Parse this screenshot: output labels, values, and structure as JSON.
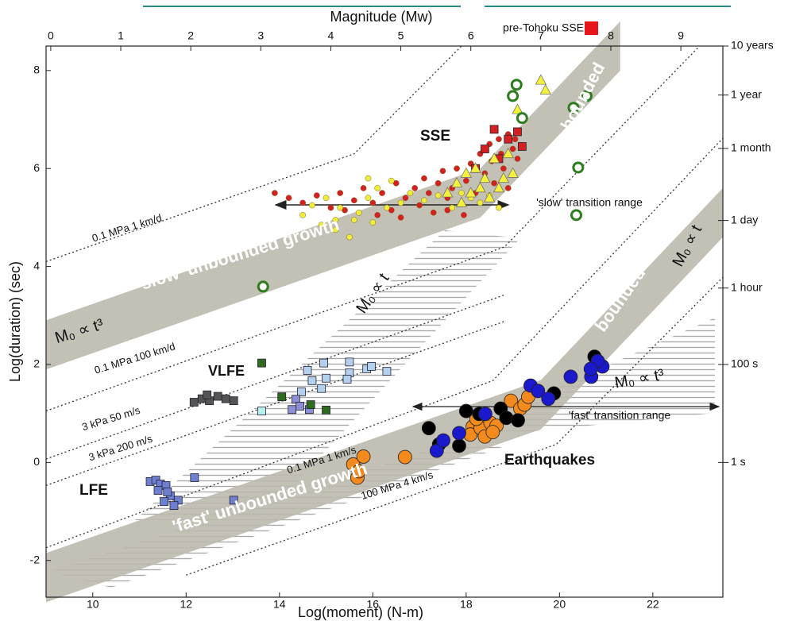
{
  "chart_data": {
    "type": "scatter",
    "xlabel": "Log(moment) (N-m)",
    "ylabel": "Log(duration) (sec)",
    "x2label": "Magnitude (Mw)",
    "xlim": [
      9,
      23.5
    ],
    "ylim": [
      -2.75,
      8.5
    ],
    "x2lim": [
      -0.067,
      9.6
    ],
    "y2lim": [
      -2.75,
      8.5
    ],
    "xticks": [
      10,
      12,
      14,
      16,
      18,
      20,
      22
    ],
    "yticks": [
      -2,
      0,
      2,
      4,
      6,
      8
    ],
    "x2ticks": [
      0,
      1,
      2,
      3,
      4,
      5,
      6,
      7,
      8,
      9
    ],
    "y2ticks": [
      {
        "value": 8.5,
        "label": "10 years"
      },
      {
        "value": 7.5,
        "label": "1 year"
      },
      {
        "value": 6.41,
        "label": "1 month"
      },
      {
        "value": 4.94,
        "label": "1 day"
      },
      {
        "value": 3.56,
        "label": "1 hour"
      },
      {
        "value": 2,
        "label": "100 s"
      },
      {
        "value": 0,
        "label": "1 s"
      }
    ],
    "bands": [
      {
        "color": "#bdb9ae",
        "x": [
          9,
          18.3,
          21.3
        ],
        "values": [
          2.4,
          5.5,
          8.5
        ]
      },
      {
        "color": "#bdb9ae",
        "x": [
          9,
          19.6,
          23.5
        ],
        "values": [
          -2.35,
          1.18,
          5.1
        ]
      }
    ],
    "reference_lines": [
      {
        "label": "0.1 MPa  1 km/d",
        "x": [
          9,
          15.6,
          17.9
        ],
        "values": [
          4.1,
          6.3,
          8.5
        ]
      },
      {
        "label": "0.1 MPa  100 km/d",
        "x": [
          9,
          18.82,
          23
        ],
        "values": [
          1.05,
          4.4,
          8.5
        ]
      },
      {
        "label": "3 kPa  50 m/s",
        "x": [
          9,
          18.82
        ],
        "values": [
          0.07,
          3.42
        ]
      },
      {
        "label": "3 kPa  200 m/s",
        "x": [
          9,
          18.82
        ],
        "values": [
          -0.47,
          2.88
        ]
      },
      {
        "label": "0.1 MPa  1 km/s",
        "x": [
          9,
          18.57,
          23.5
        ],
        "values": [
          -1.74,
          1.67,
          6.62
        ]
      },
      {
        "label": "100 MPa  4 km/s",
        "x": [
          12,
          19.93,
          23.5
        ],
        "values": [
          -2.3,
          0.37,
          3.78
        ]
      }
    ],
    "annotations": [
      "SSE",
      "VLFE",
      "LFE",
      "Earthquakes",
      "'slow' transition range",
      "'fast' transition range",
      "bounded",
      "bounded",
      "'slow' unbounded growth",
      "'fast' unbounded growth",
      "M₀ ∝ t³",
      "M₀ ∝ t",
      "M₀ ∝ t",
      "M₀ ∝ t³"
    ],
    "series": [
      {
        "color": "#d42020",
        "marker": "circle",
        "x": [
          13.9,
          14.2,
          14.5,
          14.8,
          15.1,
          15.3,
          15.6,
          15.8,
          16.0,
          16.2,
          16.4,
          16.5,
          16.7,
          16.9,
          17.0,
          17.1,
          17.2,
          17.3,
          17.4,
          17.5,
          17.6,
          17.7,
          17.8,
          17.9,
          18.0,
          18.1,
          18.2,
          18.3,
          18.4,
          18.5,
          18.55,
          18.6,
          18.7,
          18.75,
          18.8,
          18.9,
          19.0,
          19.05,
          19.1,
          17.6,
          16.1,
          15.4,
          18.9,
          16.6,
          17.95
        ],
        "values": [
          5.5,
          5.4,
          5.3,
          5.45,
          5.2,
          5.5,
          5.35,
          5.6,
          5.3,
          5.5,
          5.15,
          5.7,
          5.4,
          5.6,
          5.25,
          5.8,
          5.5,
          5.1,
          5.7,
          5.95,
          5.4,
          5.6,
          6.0,
          5.3,
          5.75,
          6.1,
          5.5,
          6.3,
          5.9,
          6.5,
          6.15,
          5.7,
          6.6,
          6.3,
          6.0,
          6.7,
          6.4,
          6.6,
          6.2,
          5.15,
          5.05,
          5.15,
          5.6,
          5.0,
          5.05
        ]
      },
      {
        "color": "#f0ec3c",
        "marker": "circle",
        "x": [
          14.5,
          14.7,
          15.0,
          15.2,
          15.3,
          15.5,
          15.7,
          15.9,
          16.1,
          16.3,
          15.2,
          15.6,
          16.6,
          16.8,
          17.1,
          17.4,
          17.7,
          17.9,
          18.1,
          18.3,
          18.5,
          18.7,
          15.9,
          16.4,
          14.9,
          16.0
        ],
        "values": [
          5.05,
          5.25,
          5.4,
          4.95,
          5.2,
          4.6,
          5.1,
          5.4,
          5.6,
          5.2,
          4.75,
          4.95,
          5.3,
          5.5,
          5.35,
          5.45,
          5.2,
          5.5,
          5.4,
          5.3,
          5.45,
          5.2,
          5.8,
          5.75,
          4.85,
          4.9
        ]
      },
      {
        "color": "#d42020",
        "marker": "square",
        "x": [
          18.4,
          18.6,
          18.9,
          19.1,
          19.2,
          18.7,
          18.2
        ],
        "values": [
          6.4,
          6.8,
          6.6,
          6.75,
          6.45,
          6.2,
          6.0
        ]
      },
      {
        "color": "#f4f03c",
        "marker": "triangle",
        "x": [
          17.6,
          17.8,
          18.0,
          18.1,
          18.2,
          18.3,
          18.4,
          18.5,
          18.6,
          18.7,
          18.8,
          18.9,
          19.0,
          19.1,
          19.6,
          19.7,
          17.9
        ],
        "values": [
          5.5,
          5.7,
          5.9,
          5.5,
          6.0,
          5.6,
          5.8,
          5.4,
          6.2,
          5.6,
          5.8,
          6.3,
          5.9,
          7.2,
          7.8,
          7.6,
          5.3
        ]
      },
      {
        "color": "#2e7d1e",
        "marker": "open-circle",
        "x": [
          13.65,
          19.08,
          19.0,
          19.2,
          20.58,
          20.3,
          20.4,
          20.36
        ],
        "values": [
          3.59,
          7.71,
          7.48,
          7.03,
          7.48,
          7.24,
          6.02,
          5.05
        ]
      },
      {
        "color": "#b3d0ec",
        "marker": "square",
        "x": [
          14.6,
          14.95,
          14.7,
          15.0,
          15.5,
          15.5,
          15.45,
          15.87,
          15.97,
          16.3,
          14.9,
          14.47
        ],
        "values": [
          1.88,
          2.03,
          1.67,
          1.72,
          2.05,
          1.83,
          1.7,
          1.91,
          1.96,
          1.86,
          1.51,
          1.44
        ]
      },
      {
        "color": "#8d8fd6",
        "marker": "square",
        "x": [
          14.35,
          14.44,
          14.27,
          14.64
        ],
        "values": [
          1.29,
          1.15,
          1.08,
          1.08
        ]
      },
      {
        "color": "#2f6b1f",
        "marker": "square",
        "x": [
          13.62,
          14.05,
          14.67,
          15.0
        ],
        "values": [
          2.03,
          1.34,
          1.18,
          1.07
        ]
      },
      {
        "color": "#b9efee",
        "marker": "square",
        "x": [
          13.62
        ],
        "values": [
          1.05
        ]
      },
      {
        "color": "#555555",
        "marker": "square",
        "x": [
          12.17,
          12.34,
          12.5,
          12.68,
          12.85,
          13.02,
          12.45
        ],
        "values": [
          1.23,
          1.3,
          1.26,
          1.35,
          1.3,
          1.26,
          1.38
        ]
      },
      {
        "color": "#6f7fcf",
        "marker": "square",
        "x": [
          11.23,
          11.35,
          11.45,
          11.57,
          11.4,
          11.66,
          11.53,
          11.83,
          12.18,
          11.6,
          13.02,
          11.74
        ],
        "values": [
          -0.39,
          -0.36,
          -0.44,
          -0.47,
          -0.57,
          -0.68,
          -0.8,
          -0.77,
          -0.31,
          -0.6,
          -0.77,
          -0.88
        ]
      },
      {
        "color": "#f28a1e",
        "marker": "big-circle",
        "x": [
          15.58,
          15.8,
          15.67,
          15.7,
          16.69,
          18.14,
          18.09,
          18.31,
          18.52,
          18.4,
          18.65,
          18.96,
          19.16,
          19.25,
          19.33,
          18.57,
          18.22
        ],
        "values": [
          -0.04,
          0.12,
          -0.31,
          -0.18,
          0.11,
          0.73,
          0.57,
          0.7,
          0.81,
          0.53,
          0.75,
          1.26,
          1.1,
          1.18,
          1.34,
          0.62,
          0.89
        ]
      },
      {
        "color": "#000000",
        "marker": "big-circle",
        "x": [
          17.2,
          17.42,
          17.85,
          18.0,
          18.28,
          18.74,
          18.86,
          19.11,
          19.88,
          20.75
        ],
        "values": [
          0.7,
          0.37,
          0.34,
          1.05,
          0.99,
          1.1,
          0.91,
          0.86,
          1.41,
          2.16
        ]
      },
      {
        "color": "#1a1acc",
        "marker": "big-circle",
        "x": [
          17.37,
          17.51,
          17.85,
          18.41,
          19.38,
          19.54,
          19.76,
          20.24,
          20.68,
          20.92,
          20.82,
          20.67
        ],
        "values": [
          0.24,
          0.45,
          0.6,
          0.99,
          1.57,
          1.46,
          1.3,
          1.75,
          1.75,
          1.96,
          2.07,
          1.91
        ]
      },
      {
        "name": "pre-Tohoku SSE",
        "color": "#e8141c",
        "marker": "square",
        "x": [],
        "values": []
      }
    ]
  }
}
